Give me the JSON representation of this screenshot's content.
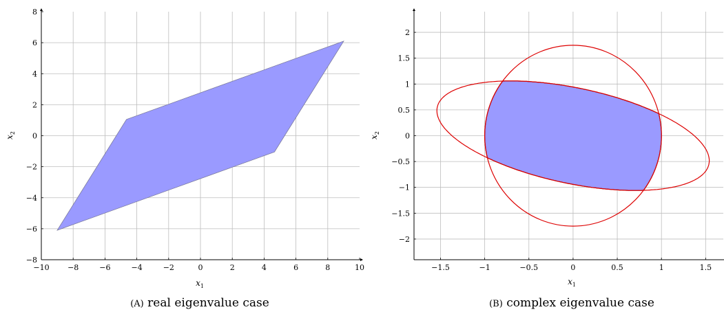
{
  "chart_data": [
    {
      "type": "area",
      "caption_tag": "(A)",
      "caption_text": "real eigenvalue case",
      "xlabel": "x",
      "xlabel_sub": "1",
      "ylabel": "x",
      "ylabel_sub": "2",
      "xlim": [
        -10,
        10
      ],
      "ylim": [
        -8,
        8
      ],
      "x_ticks": [
        -10,
        -8,
        -6,
        -4,
        -2,
        0,
        2,
        4,
        6,
        8,
        10
      ],
      "y_ticks": [
        -8,
        -6,
        -4,
        -2,
        0,
        2,
        4,
        6,
        8
      ],
      "x_tick_labels": [
        "−10",
        "−8",
        "−6",
        "−4",
        "−2",
        "0",
        "2",
        "4",
        "6",
        "8",
        "10"
      ],
      "y_tick_labels": [
        "−8",
        "−6",
        "−4",
        "−2",
        "0",
        "2",
        "4",
        "6",
        "8"
      ],
      "grid": true,
      "fill_color": "#9a9aff",
      "region": [
        [
          -9,
          -6.1
        ],
        [
          -4.65,
          1.05
        ],
        [
          9,
          6.1
        ],
        [
          4.65,
          -1.05
        ]
      ]
    },
    {
      "type": "area",
      "caption_tag": "(B)",
      "caption_text": "complex eigenvalue case",
      "xlabel": "x",
      "xlabel_sub": "1",
      "ylabel": "x",
      "ylabel_sub": "2",
      "xlim": [
        -1.8,
        1.7
      ],
      "ylim": [
        -2.4,
        2.4
      ],
      "x_ticks": [
        -1.5,
        -1,
        -0.5,
        0,
        0.5,
        1,
        1.5
      ],
      "y_ticks": [
        -2,
        -1.5,
        -1,
        -0.5,
        0,
        0.5,
        1,
        1.5,
        2
      ],
      "x_tick_labels": [
        "−1.5",
        "−1",
        "−0.5",
        "0",
        "0.5",
        "1",
        "1.5"
      ],
      "y_tick_labels": [
        "−2",
        "−1.5",
        "−1",
        "−0.5",
        "0",
        "0.5",
        "1",
        "1.5",
        "2"
      ],
      "grid": true,
      "fill_color": "#9a9aff",
      "curve_color": "#dd0000",
      "ellipse_vertical": {
        "cx": 0,
        "cy": 0,
        "rx": 1,
        "ry": 1.75
      },
      "ellipse_tilted": {
        "cx": 0,
        "cy": 0,
        "a": 1.65,
        "b": 0.88,
        "angle_deg": -25
      }
    }
  ]
}
